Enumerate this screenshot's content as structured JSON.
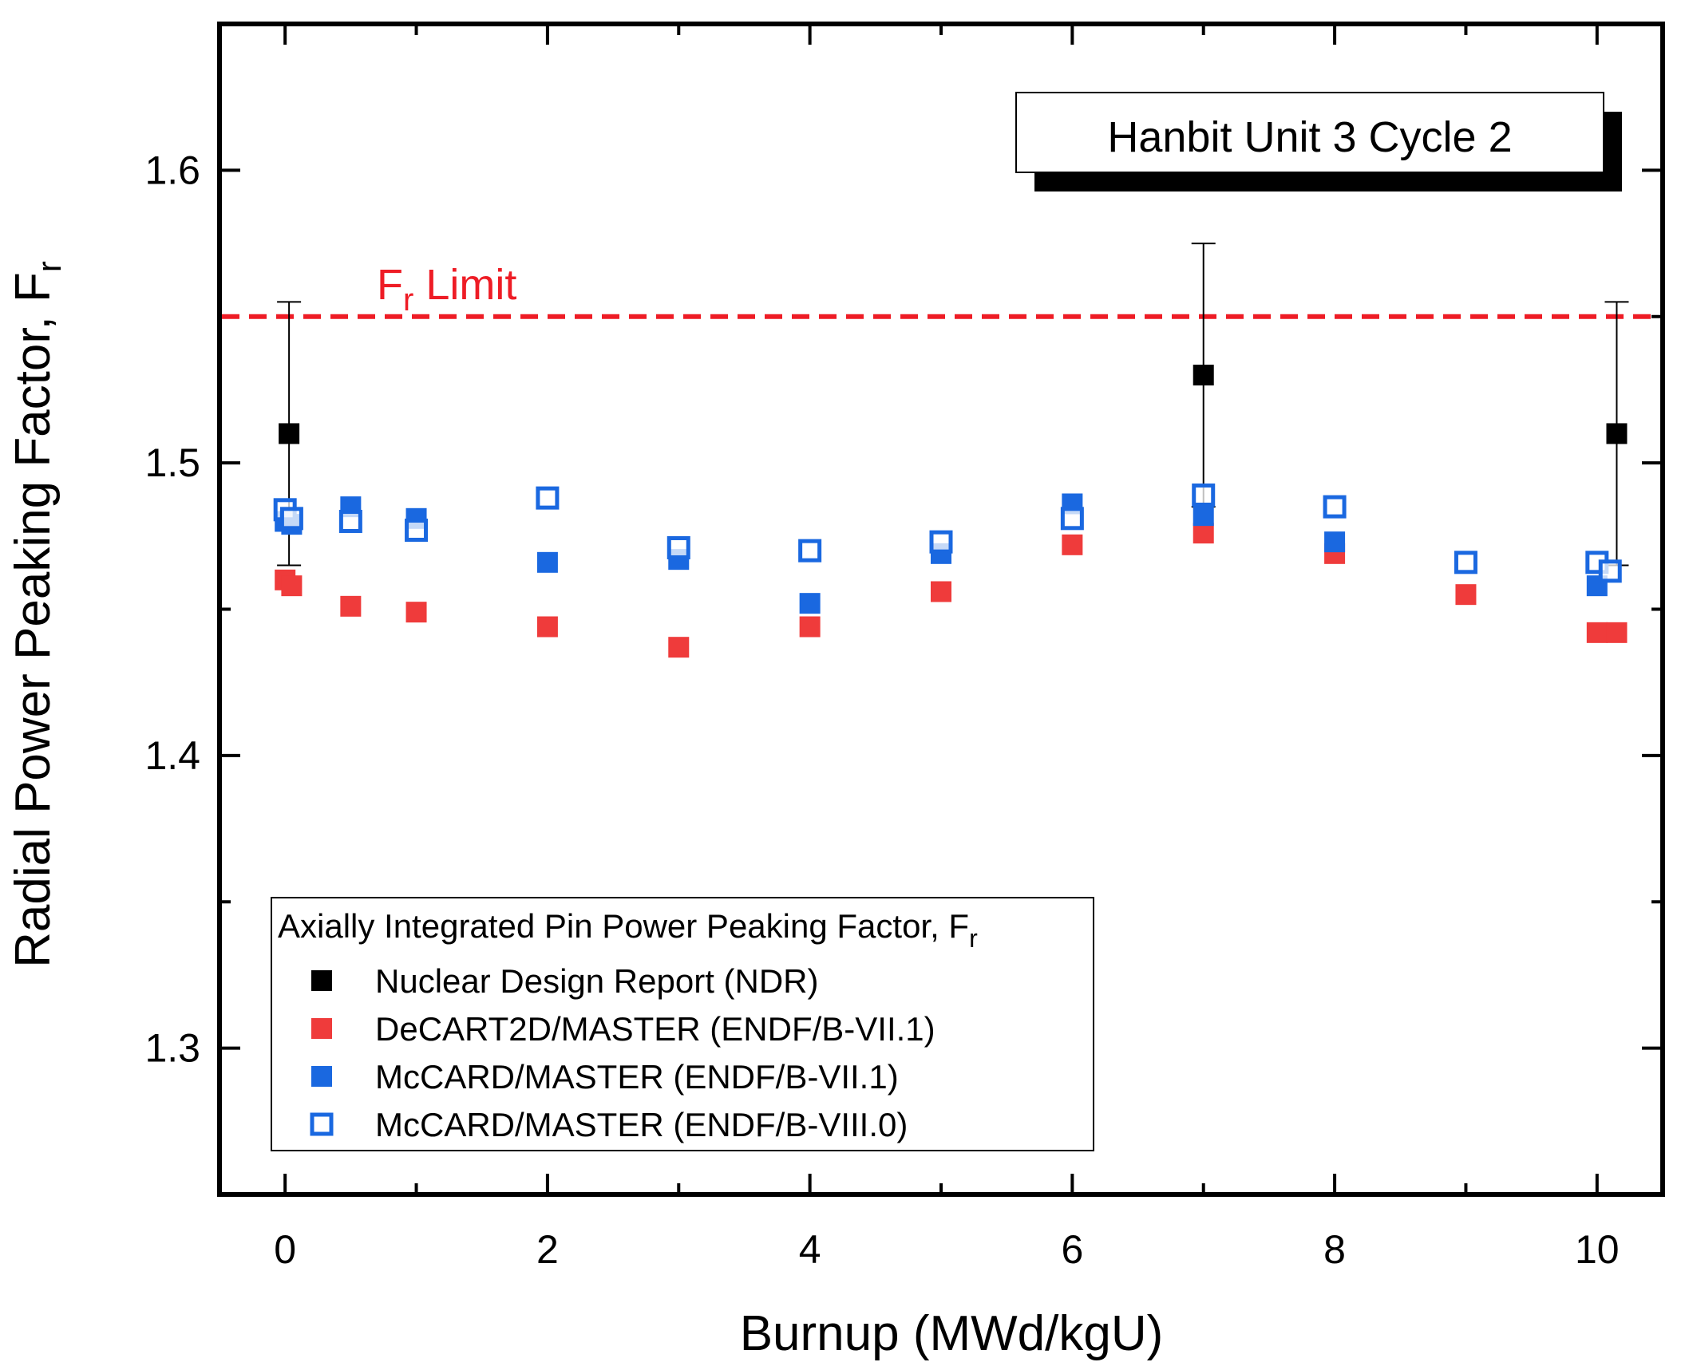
{
  "chart_data": {
    "type": "scatter",
    "title": "",
    "xlabel": "Burnup (MWd/kgU)",
    "ylabel": "Radial Power Peaking Factor, F",
    "ylabel_sub": "r",
    "xlim": [
      -0.5,
      10.5
    ],
    "ylim": [
      1.25,
      1.65
    ],
    "xticks": [
      0,
      2,
      4,
      6,
      8,
      10
    ],
    "yticks": [
      1.3,
      1.4,
      1.5,
      1.6
    ],
    "xtick_labels": [
      "0",
      "2",
      "4",
      "6",
      "8",
      "10"
    ],
    "ytick_labels": [
      "1.3",
      "1.4",
      "1.5",
      "1.6"
    ],
    "grid": false,
    "annotation": "Hanbit Unit 3 Cycle 2",
    "reference_line": {
      "label": "F",
      "label_sub": "r",
      "label_suffix": " Limit",
      "y": 1.55,
      "color": "#ee1c25",
      "style": "dashed"
    },
    "legend": {
      "title": "Axially Integrated Pin Power Peaking Factor, F",
      "title_sub": "r",
      "location": "lower-left"
    },
    "series": [
      {
        "name": "Nuclear Design Report (NDR)",
        "marker": "square-filled",
        "color": "#000000",
        "x": [
          0.03,
          7.0,
          10.15
        ],
        "y": [
          1.51,
          1.53,
          1.51
        ],
        "yerr_low": [
          1.465,
          1.485,
          1.465
        ],
        "yerr_high": [
          1.555,
          1.575,
          1.555
        ]
      },
      {
        "name": "DeCART2D/MASTER (ENDF/B-VII.1)",
        "marker": "square-filled",
        "color": "#ef3b3b",
        "x": [
          0.0,
          0.05,
          0.5,
          1.0,
          2.0,
          3.0,
          4.0,
          5.0,
          6.0,
          7.0,
          8.0,
          9.0,
          10.0,
          10.15
        ],
        "y": [
          1.46,
          1.458,
          1.451,
          1.449,
          1.444,
          1.437,
          1.444,
          1.456,
          1.472,
          1.476,
          1.469,
          1.455,
          1.442,
          1.442
        ]
      },
      {
        "name": "McCARD/MASTER (ENDF/B-VII.1)",
        "marker": "square-filled",
        "color": "#1a68e0",
        "x": [
          0.0,
          0.05,
          0.5,
          1.0,
          2.0,
          3.0,
          4.0,
          5.0,
          6.0,
          7.0,
          8.0,
          10.0
        ],
        "y": [
          1.48,
          1.479,
          1.485,
          1.481,
          1.466,
          1.467,
          1.452,
          1.469,
          1.486,
          1.482,
          1.473,
          1.458
        ]
      },
      {
        "name": "McCARD/MASTER (ENDF/B-VIII.0)",
        "marker": "square-open",
        "color": "#1a68e0",
        "x": [
          0.0,
          0.05,
          0.5,
          1.0,
          2.0,
          3.0,
          4.0,
          5.0,
          6.0,
          7.0,
          8.0,
          9.0,
          10.0,
          10.1
        ],
        "y": [
          1.484,
          1.481,
          1.48,
          1.477,
          1.488,
          1.471,
          1.47,
          1.473,
          1.481,
          1.489,
          1.485,
          1.466,
          1.466,
          1.463
        ]
      }
    ]
  }
}
